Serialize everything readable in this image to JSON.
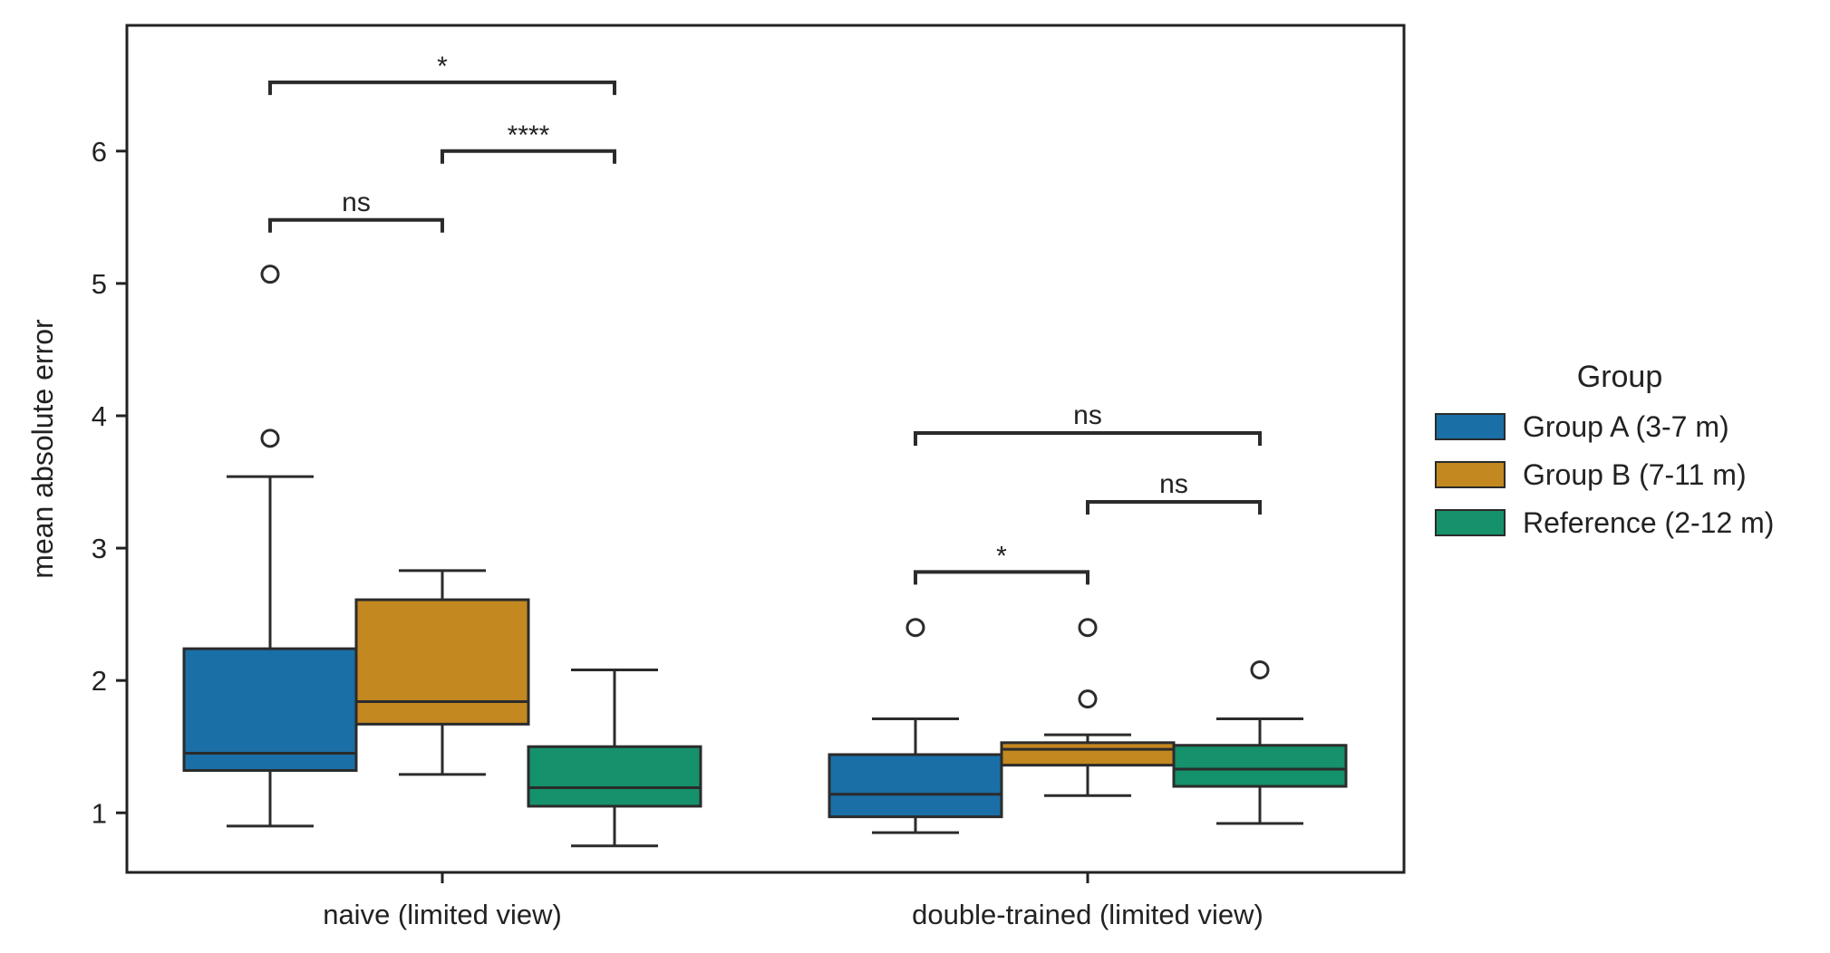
{
  "chart_data": {
    "type": "box",
    "title": "",
    "xlabel": "",
    "ylabel": "mean absolute error",
    "ylim": [
      0.55,
      6.95
    ],
    "yticks": [
      1,
      2,
      3,
      4,
      5,
      6
    ],
    "categories": [
      "naive (limited view)",
      "double-trained (limited view)"
    ],
    "legend": {
      "title": "Group",
      "placement": "outside-right"
    },
    "series": [
      {
        "name": "Group A (3-7 m)",
        "color": "#1a6fa6",
        "boxes": [
          {
            "whislo": 0.9,
            "q1": 1.32,
            "median": 1.45,
            "q3": 2.24,
            "whishi": 3.54,
            "fliers": [
              3.83,
              5.07
            ]
          },
          {
            "whislo": 0.85,
            "q1": 0.97,
            "median": 1.14,
            "q3": 1.44,
            "whishi": 1.71,
            "fliers": [
              2.4
            ]
          }
        ]
      },
      {
        "name": "Group B (7-11 m)",
        "color": "#c38820",
        "boxes": [
          {
            "whislo": 1.29,
            "q1": 1.67,
            "median": 1.84,
            "q3": 2.61,
            "whishi": 2.83,
            "fliers": []
          },
          {
            "whislo": 1.13,
            "q1": 1.36,
            "median": 1.48,
            "q3": 1.53,
            "whishi": 1.59,
            "fliers": [
              1.86,
              2.4
            ]
          }
        ]
      },
      {
        "name": "Reference (2-12 m)",
        "color": "#15916b",
        "boxes": [
          {
            "whislo": 0.75,
            "q1": 1.05,
            "median": 1.19,
            "q3": 1.5,
            "whishi": 2.08,
            "fliers": []
          },
          {
            "whislo": 0.92,
            "q1": 1.2,
            "median": 1.33,
            "q3": 1.51,
            "whishi": 1.71,
            "fliers": [
              2.08
            ]
          }
        ]
      }
    ],
    "annotations": [
      {
        "category": 0,
        "from": 0,
        "to": 1,
        "y": 5.48,
        "label": "ns"
      },
      {
        "category": 0,
        "from": 1,
        "to": 2,
        "y": 6.0,
        "label": "****"
      },
      {
        "category": 0,
        "from": 0,
        "to": 2,
        "y": 6.52,
        "label": "*"
      },
      {
        "category": 1,
        "from": 0,
        "to": 1,
        "y": 2.82,
        "label": "*"
      },
      {
        "category": 1,
        "from": 1,
        "to": 2,
        "y": 3.35,
        "label": "ns"
      },
      {
        "category": 1,
        "from": 0,
        "to": 2,
        "y": 3.87,
        "label": "ns"
      }
    ],
    "grid": false
  }
}
